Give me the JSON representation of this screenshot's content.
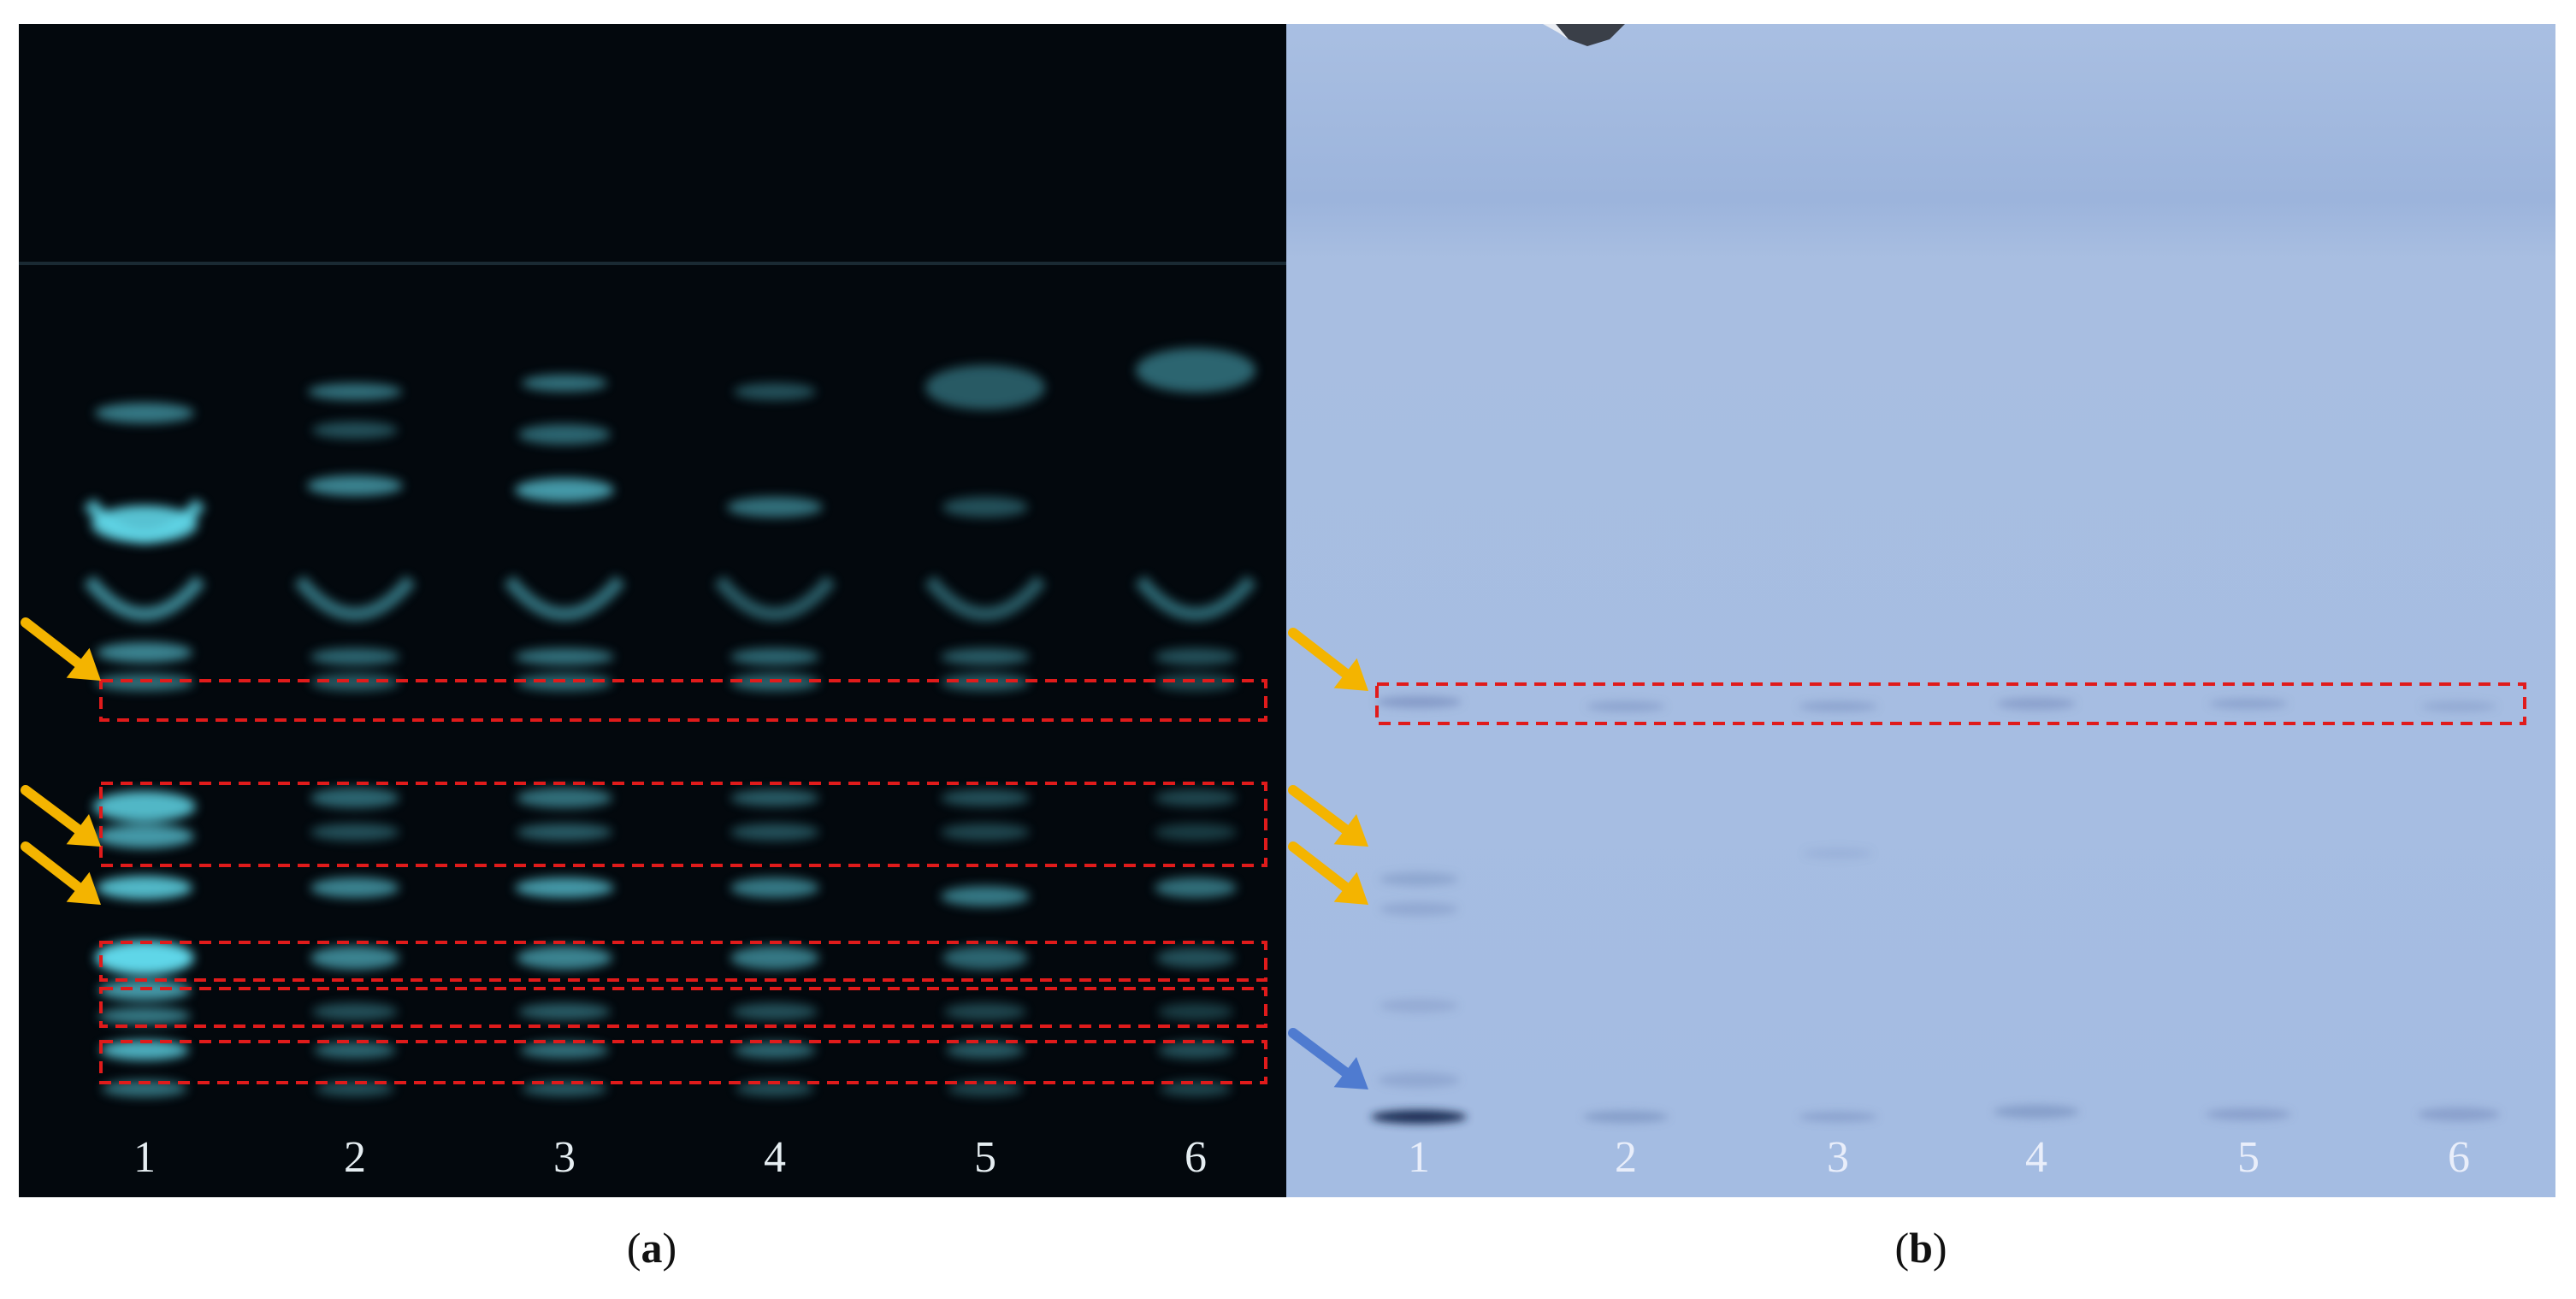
{
  "panels": [
    {
      "id": "a",
      "caption_letter": "a",
      "background": "#03080d",
      "band_color": "#5fd6e8",
      "lane_labels": [
        "1",
        "2",
        "3",
        "4",
        "5",
        "6"
      ]
    },
    {
      "id": "b",
      "caption_letter": "b",
      "background": "#9fb6dd",
      "band_color": "#6f86b7",
      "lane_labels": [
        "1",
        "2",
        "3",
        "4",
        "5",
        "6"
      ]
    }
  ],
  "annotations": {
    "arrow_color_highlight": "#f4b400",
    "arrow_color_baseline": "#4f7bd0",
    "box_color": "#e01b1b"
  }
}
